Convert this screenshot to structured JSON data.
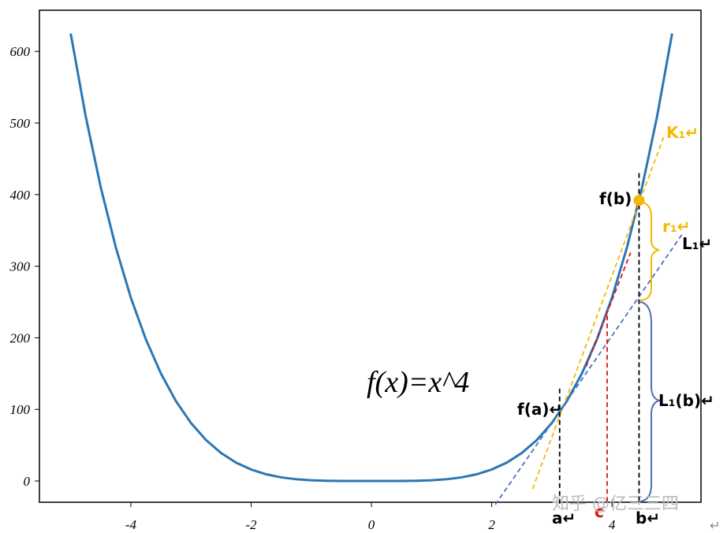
{
  "chart_data": {
    "type": "line",
    "xlim": [
      -5.52,
      5.48
    ],
    "ylim": [
      -29.7,
      657.5
    ],
    "xticks": [
      -4,
      -2,
      0,
      2,
      4
    ],
    "yticks": [
      0,
      100,
      200,
      300,
      400,
      500,
      600
    ],
    "series": [
      {
        "color": "#2a77b4",
        "width": 3,
        "x": [
          -5,
          -4.75,
          -4.5,
          -4.25,
          -4,
          -3.75,
          -3.5,
          -3.25,
          -3,
          -2.75,
          -2.5,
          -2.25,
          -2,
          -1.75,
          -1.5,
          -1.25,
          -1,
          -0.75,
          -0.5,
          -0.25,
          0,
          0.25,
          0.5,
          0.75,
          1,
          1.25,
          1.5,
          1.75,
          2,
          2.25,
          2.5,
          2.75,
          3,
          3.25,
          3.5,
          3.75,
          4,
          4.25,
          4.5,
          4.75,
          5
        ],
        "values": [
          625,
          509.07,
          410.06,
          326.25,
          256,
          197.75,
          150.06,
          111.57,
          81,
          57.19,
          39.06,
          25.63,
          16,
          9.38,
          5.06,
          2.44,
          1,
          0.32,
          0.06,
          0,
          0,
          0,
          0.06,
          0.32,
          1,
          2.44,
          5.06,
          9.38,
          16,
          25.63,
          39.06,
          57.19,
          81,
          111.57,
          150.06,
          197.75,
          256,
          326.25,
          410.06,
          509.07,
          625
        ]
      },
      {
        "color": "#f5b800",
        "dash": true,
        "x": [
          2.68,
          4.88
        ],
        "values": [
          -11,
          485
        ]
      },
      {
        "color": "#4a72b8",
        "dash": true,
        "x": [
          2.06,
          5.17
        ],
        "values": [
          -33,
          345
        ]
      },
      {
        "color": "#e01010",
        "dash": true,
        "x": [
          3.57,
          4.31
        ],
        "values": [
          160,
          319
        ]
      },
      {
        "color": "#000000",
        "dash": true,
        "x": [
          3.13,
          3.13
        ],
        "values": [
          129,
          -33
        ]
      },
      {
        "color": "#e01010",
        "dash": true,
        "x": [
          3.92,
          3.92
        ],
        "values": [
          231,
          -33
        ]
      },
      {
        "color": "#000000",
        "dash": true,
        "x": [
          4.45,
          4.45
        ],
        "values": [
          430,
          -33
        ]
      },
      {
        "color": "#f5b800",
        "marker": true,
        "x": [
          4.45
        ],
        "values": [
          392
        ]
      }
    ],
    "annotations": [
      "f(x)=x^4",
      "K₁↵",
      "r₁↵",
      "L₁↵",
      "L₁(b)↵",
      "f(a)↵",
      "f(b)",
      "a↵",
      "c",
      "b↵",
      "知乎 @亿三三四",
      "↵"
    ]
  }
}
